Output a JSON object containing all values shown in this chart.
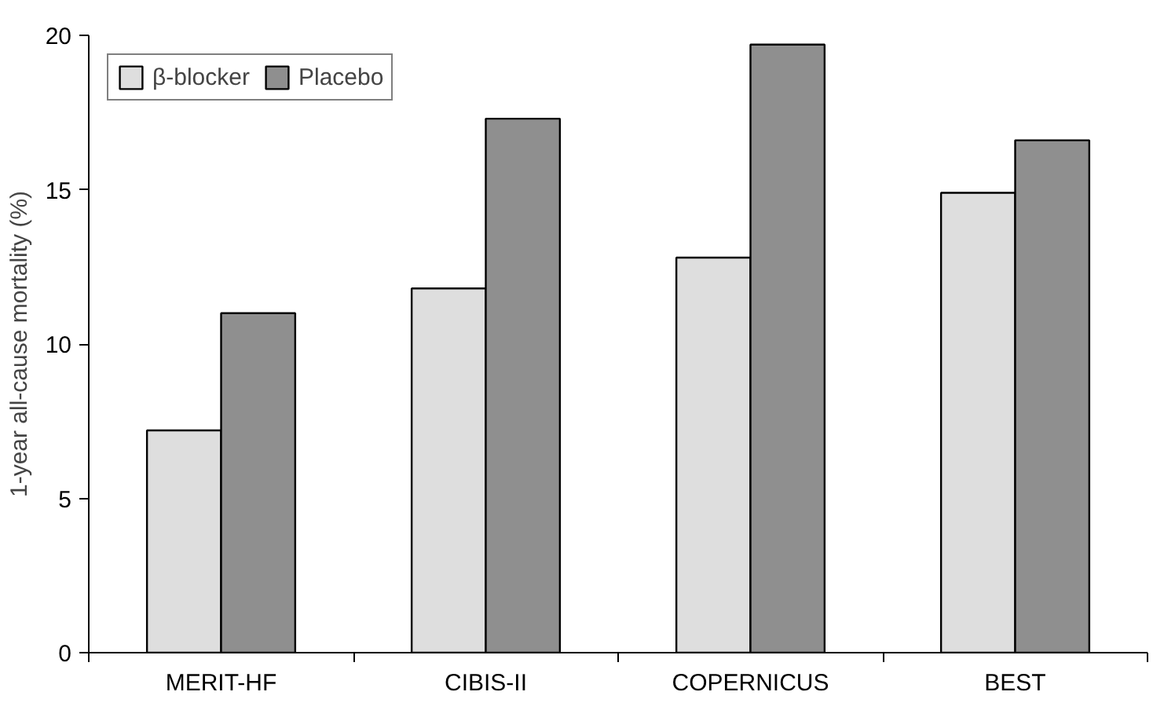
{
  "chart_data": {
    "type": "bar",
    "ylabel": "1-year all-cause mortality (%)",
    "categories": [
      "MERIT-HF",
      "CIBIS-II",
      "COPERNICUS",
      "BEST"
    ],
    "series": [
      {
        "name": "β-blocker",
        "color": "#dedede",
        "values": [
          7.2,
          11.8,
          12.8,
          14.9
        ]
      },
      {
        "name": "Placebo",
        "color": "#8f8f8f",
        "values": [
          11.0,
          17.3,
          19.7,
          16.6
        ]
      }
    ],
    "ylim": [
      0,
      20
    ],
    "yticks": [
      0,
      5,
      10,
      15,
      20
    ],
    "grid": false,
    "legend": "top left"
  }
}
